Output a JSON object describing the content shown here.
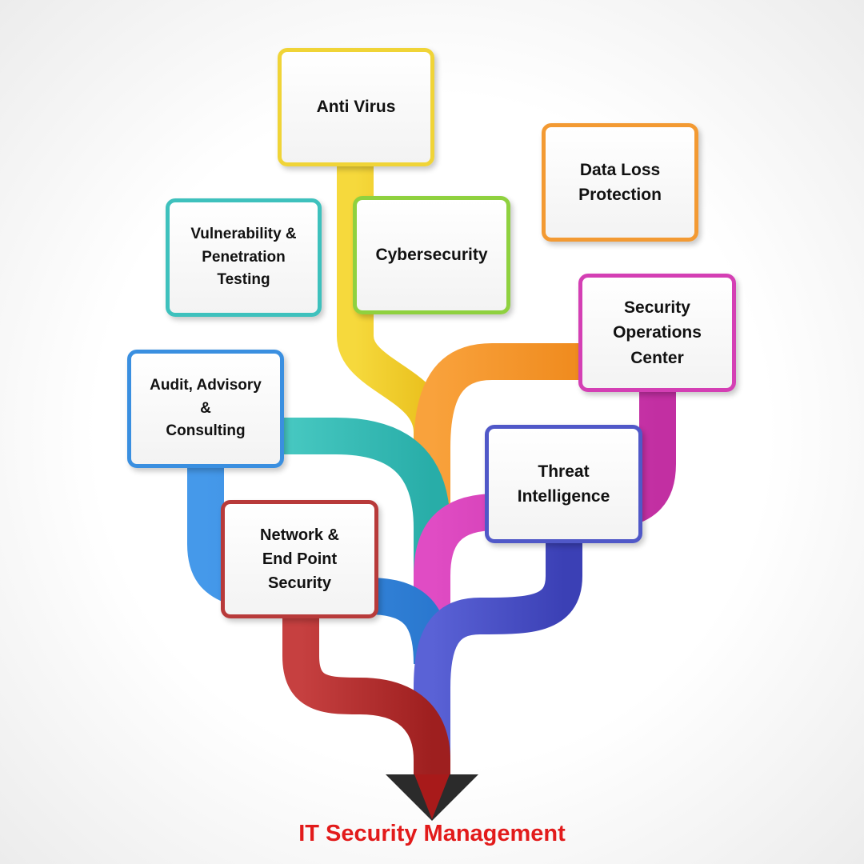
{
  "title": "IT Security Management",
  "nodes": {
    "anti_virus": {
      "label": "Anti Virus",
      "color": "#f0d437"
    },
    "data_loss": {
      "label": "Data Loss\nProtection",
      "color": "#f39a33"
    },
    "vulnerability": {
      "label": "Vulnerability &\nPenetration\nTesting",
      "color": "#3ec1bd"
    },
    "cybersecurity": {
      "label": "Cybersecurity",
      "color": "#8fd13f"
    },
    "soc": {
      "label": "Security\nOperations\nCenter",
      "color": "#d43fb4"
    },
    "audit": {
      "label": "Audit, Advisory\n&\nConsulting",
      "color": "#3a8fe0"
    },
    "threat": {
      "label": "Threat\nIntelligence",
      "color": "#5058c8"
    },
    "network": {
      "label": "Network &\nEnd Point\nSecurity",
      "color": "#b83a3a"
    }
  },
  "colors": {
    "title": "#e21b1b",
    "arrow_head": "#2b2b2b"
  }
}
